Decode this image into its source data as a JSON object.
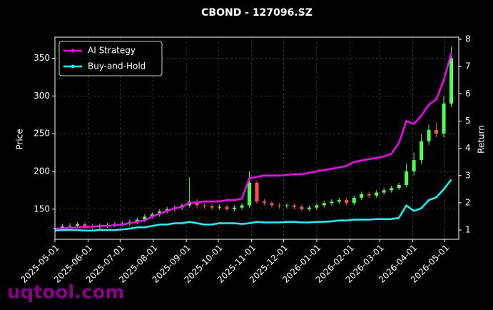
{
  "chart_data": {
    "type": "candlestick_returns",
    "title": "CBOND - 127096.SZ",
    "ylabel": "Price",
    "y2label": "Return",
    "watermark": "uqtool.com",
    "x": [
      "2025-05-01",
      "2025-05-08",
      "2025-05-15",
      "2025-05-22",
      "2025-05-29",
      "2025-06-05",
      "2025-06-12",
      "2025-06-19",
      "2025-06-26",
      "2025-07-03",
      "2025-07-10",
      "2025-07-17",
      "2025-07-24",
      "2025-07-31",
      "2025-08-07",
      "2025-08-14",
      "2025-08-21",
      "2025-08-28",
      "2025-09-04",
      "2025-09-11",
      "2025-09-18",
      "2025-09-25",
      "2025-10-02",
      "2025-10-09",
      "2025-10-16",
      "2025-10-23",
      "2025-10-30",
      "2025-11-06",
      "2025-11-13",
      "2025-11-20",
      "2025-11-27",
      "2025-12-04",
      "2025-12-11",
      "2025-12-18",
      "2025-12-25",
      "2026-01-01",
      "2026-01-08",
      "2026-01-15",
      "2026-01-22",
      "2026-01-29",
      "2026-02-05",
      "2026-02-12",
      "2026-02-19",
      "2026-02-26",
      "2026-03-05",
      "2026-03-12",
      "2026-03-19",
      "2026-03-26",
      "2026-04-02",
      "2026-04-09",
      "2026-04-16",
      "2026-04-23",
      "2026-04-30",
      "2026-05-07"
    ],
    "open": [
      124,
      125,
      127,
      128,
      130,
      127,
      126,
      128,
      129,
      130,
      131,
      133,
      136,
      140,
      143,
      147,
      150,
      152,
      155,
      160,
      155,
      154,
      152,
      153,
      150,
      152,
      155,
      185,
      160,
      158,
      155,
      154,
      155,
      153,
      150,
      152,
      155,
      158,
      160,
      162,
      158,
      165,
      170,
      168,
      172,
      175,
      178,
      182,
      200,
      215,
      240,
      255,
      250,
      290
    ],
    "high": [
      128,
      130,
      131,
      133,
      133,
      130,
      131,
      132,
      133,
      134,
      136,
      139,
      143,
      146,
      150,
      153,
      155,
      158,
      192,
      163,
      158,
      157,
      156,
      156,
      155,
      158,
      200,
      188,
      163,
      161,
      158,
      158,
      158,
      156,
      155,
      158,
      161,
      163,
      165,
      165,
      168,
      173,
      173,
      175,
      178,
      181,
      185,
      210,
      225,
      250,
      262,
      265,
      300,
      365
    ],
    "low": [
      121,
      122,
      124,
      125,
      124,
      123,
      123,
      125,
      126,
      127,
      128,
      130,
      133,
      137,
      140,
      144,
      147,
      149,
      152,
      152,
      151,
      149,
      149,
      147,
      147,
      149,
      152,
      157,
      155,
      152,
      151,
      151,
      150,
      147,
      147,
      149,
      152,
      155,
      157,
      155,
      155,
      162,
      165,
      165,
      169,
      172,
      175,
      179,
      195,
      210,
      235,
      245,
      245,
      285
    ],
    "close": [
      125,
      127,
      128,
      130,
      127,
      126,
      128,
      129,
      130,
      131,
      133,
      136,
      140,
      143,
      147,
      150,
      152,
      155,
      160,
      155,
      154,
      152,
      153,
      150,
      152,
      155,
      185,
      160,
      158,
      155,
      154,
      155,
      153,
      150,
      152,
      155,
      158,
      160,
      162,
      158,
      165,
      170,
      168,
      172,
      175,
      178,
      182,
      200,
      215,
      240,
      255,
      250,
      290,
      350
    ],
    "up_color": "#4cff4c",
    "down_color": "#ff4c4c",
    "series": [
      {
        "name": "AI Strategy",
        "color": "#ff00ff",
        "axis": "y2",
        "values": [
          1.05,
          1.06,
          1.08,
          1.1,
          1.1,
          1.12,
          1.15,
          1.15,
          1.18,
          1.2,
          1.25,
          1.3,
          1.35,
          1.5,
          1.6,
          1.7,
          1.8,
          1.85,
          2.0,
          2.0,
          2.05,
          2.05,
          2.05,
          2.1,
          2.1,
          2.15,
          2.9,
          2.95,
          3.0,
          3.0,
          3.0,
          3.02,
          3.05,
          3.05,
          3.1,
          3.15,
          3.2,
          3.25,
          3.3,
          3.35,
          3.5,
          3.55,
          3.6,
          3.65,
          3.7,
          3.8,
          4.2,
          5.0,
          4.9,
          5.2,
          5.6,
          5.8,
          6.5,
          7.5
        ]
      },
      {
        "name": "Buy-and-Hold",
        "color": "#00ffff",
        "axis": "y2",
        "values": [
          0.98,
          1.0,
          1.0,
          1.0,
          0.98,
          0.98,
          1.0,
          1.0,
          1.0,
          1.02,
          1.05,
          1.1,
          1.1,
          1.15,
          1.2,
          1.2,
          1.25,
          1.25,
          1.3,
          1.25,
          1.2,
          1.2,
          1.25,
          1.25,
          1.25,
          1.22,
          1.25,
          1.3,
          1.28,
          1.28,
          1.28,
          1.3,
          1.3,
          1.28,
          1.28,
          1.3,
          1.3,
          1.32,
          1.35,
          1.35,
          1.38,
          1.38,
          1.38,
          1.4,
          1.4,
          1.4,
          1.45,
          1.9,
          1.7,
          1.8,
          2.1,
          2.2,
          2.5,
          2.85
        ]
      }
    ],
    "xlim": [
      "2025-05-01",
      "2026-05-14"
    ],
    "xticks": [
      "2025-05-01",
      "2025-06-01",
      "2025-07-01",
      "2025-08-01",
      "2025-09-01",
      "2025-10-01",
      "2025-11-01",
      "2025-12-01",
      "2026-01-01",
      "2026-02-01",
      "2026-03-01",
      "2026-04-01",
      "2026-05-01"
    ],
    "ylim": [
      110,
      378
    ],
    "yticks": [
      150,
      200,
      250,
      300,
      350
    ],
    "y2lim": [
      0.66,
      8.08
    ],
    "y2ticks": [
      1,
      2,
      3,
      4,
      5,
      6,
      7,
      8
    ],
    "grid": true,
    "legend": "upper-left"
  }
}
